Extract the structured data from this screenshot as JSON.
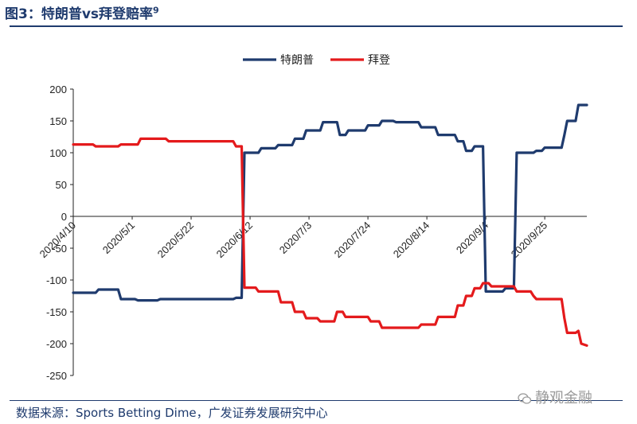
{
  "figure": {
    "title": "图3：特朗普vs拜登赔率",
    "title_superscript": "9",
    "source": "数据来源：Sports Betting Dime，广发证券发展研究中心",
    "watermark": "静观金融",
    "colors": {
      "frame": "#1f3b6e",
      "trump": "#1f3b6e",
      "biden": "#e41a1c"
    }
  },
  "chart_data": {
    "type": "line",
    "title": "",
    "xlabel": "",
    "ylabel": "",
    "ylim": [
      -250,
      200
    ],
    "yticks": [
      200,
      150,
      100,
      50,
      0,
      -50,
      -100,
      -150,
      -200,
      -250
    ],
    "xticks": [
      "2020/4/10",
      "2020/5/1",
      "2020/5/22",
      "2020/6/12",
      "2020/7/3",
      "2020/7/24",
      "2020/8/14",
      "2020/9/4",
      "2020/9/25"
    ],
    "xrange": [
      "2020/4/10",
      "2020/10/10"
    ],
    "legend_position": "top-center",
    "grid": false,
    "series": [
      {
        "name": "特朗普",
        "color": "#1f3b6e",
        "points": [
          [
            "2020/4/10",
            -120
          ],
          [
            "2020/4/18",
            -120
          ],
          [
            "2020/4/19",
            -115
          ],
          [
            "2020/4/26",
            -115
          ],
          [
            "2020/4/27",
            -130
          ],
          [
            "2020/5/2",
            -130
          ],
          [
            "2020/5/3",
            -132
          ],
          [
            "2020/5/10",
            -132
          ],
          [
            "2020/5/11",
            -130
          ],
          [
            "2020/6/6",
            -130
          ],
          [
            "2020/6/7",
            -128
          ],
          [
            "2020/6/9",
            -128
          ],
          [
            "2020/6/10",
            100
          ],
          [
            "2020/6/15",
            100
          ],
          [
            "2020/6/16",
            107
          ],
          [
            "2020/6/21",
            107
          ],
          [
            "2020/6/22",
            112
          ],
          [
            "2020/6/27",
            112
          ],
          [
            "2020/6/28",
            122
          ],
          [
            "2020/7/1",
            122
          ],
          [
            "2020/7/2",
            135
          ],
          [
            "2020/7/7",
            135
          ],
          [
            "2020/7/8",
            148
          ],
          [
            "2020/7/13",
            148
          ],
          [
            "2020/7/14",
            128
          ],
          [
            "2020/7/16",
            128
          ],
          [
            "2020/7/17",
            135
          ],
          [
            "2020/7/23",
            135
          ],
          [
            "2020/7/24",
            143
          ],
          [
            "2020/7/28",
            143
          ],
          [
            "2020/7/29",
            150
          ],
          [
            "2020/8/2",
            150
          ],
          [
            "2020/8/3",
            148
          ],
          [
            "2020/8/11",
            148
          ],
          [
            "2020/8/12",
            140
          ],
          [
            "2020/8/17",
            140
          ],
          [
            "2020/8/18",
            128
          ],
          [
            "2020/8/24",
            128
          ],
          [
            "2020/8/25",
            118
          ],
          [
            "2020/8/27",
            118
          ],
          [
            "2020/8/28",
            103
          ],
          [
            "2020/8/30",
            103
          ],
          [
            "2020/8/31",
            110
          ],
          [
            "2020/9/3",
            110
          ],
          [
            "2020/9/4",
            -118
          ],
          [
            "2020/9/10",
            -118
          ],
          [
            "2020/9/11",
            -113
          ],
          [
            "2020/9/14",
            -113
          ],
          [
            "2020/9/15",
            100
          ],
          [
            "2020/9/21",
            100
          ],
          [
            "2020/9/22",
            103
          ],
          [
            "2020/9/24",
            103
          ],
          [
            "2020/9/25",
            108
          ],
          [
            "2020/10/1",
            108
          ],
          [
            "2020/10/2",
            128
          ],
          [
            "2020/10/3",
            150
          ],
          [
            "2020/10/6",
            150
          ],
          [
            "2020/10/7",
            175
          ],
          [
            "2020/10/10",
            175
          ]
        ]
      },
      {
        "name": "拜登",
        "color": "#e41a1c",
        "points": [
          [
            "2020/4/10",
            113
          ],
          [
            "2020/4/17",
            113
          ],
          [
            "2020/4/18",
            110
          ],
          [
            "2020/4/26",
            110
          ],
          [
            "2020/4/27",
            113
          ],
          [
            "2020/5/3",
            113
          ],
          [
            "2020/5/4",
            122
          ],
          [
            "2020/5/13",
            122
          ],
          [
            "2020/5/14",
            118
          ],
          [
            "2020/6/6",
            118
          ],
          [
            "2020/6/7",
            110
          ],
          [
            "2020/6/9",
            110
          ],
          [
            "2020/6/10",
            -112
          ],
          [
            "2020/6/14",
            -112
          ],
          [
            "2020/6/15",
            -118
          ],
          [
            "2020/6/22",
            -118
          ],
          [
            "2020/6/23",
            -135
          ],
          [
            "2020/6/27",
            -135
          ],
          [
            "2020/6/28",
            -150
          ],
          [
            "2020/7/1",
            -150
          ],
          [
            "2020/7/2",
            -160
          ],
          [
            "2020/7/6",
            -160
          ],
          [
            "2020/7/7",
            -165
          ],
          [
            "2020/7/12",
            -165
          ],
          [
            "2020/7/13",
            -150
          ],
          [
            "2020/7/15",
            -150
          ],
          [
            "2020/7/16",
            -158
          ],
          [
            "2020/7/24",
            -158
          ],
          [
            "2020/7/25",
            -165
          ],
          [
            "2020/7/28",
            -165
          ],
          [
            "2020/7/29",
            -175
          ],
          [
            "2020/8/11",
            -175
          ],
          [
            "2020/8/12",
            -170
          ],
          [
            "2020/8/17",
            -170
          ],
          [
            "2020/8/18",
            -158
          ],
          [
            "2020/8/24",
            -158
          ],
          [
            "2020/8/25",
            -140
          ],
          [
            "2020/8/27",
            -140
          ],
          [
            "2020/8/28",
            -125
          ],
          [
            "2020/8/30",
            -125
          ],
          [
            "2020/8/31",
            -113
          ],
          [
            "2020/9/2",
            -113
          ],
          [
            "2020/9/3",
            -105
          ],
          [
            "2020/9/5",
            -105
          ],
          [
            "2020/9/6",
            -110
          ],
          [
            "2020/9/14",
            -110
          ],
          [
            "2020/9/15",
            -118
          ],
          [
            "2020/9/20",
            -118
          ],
          [
            "2020/9/21",
            -125
          ],
          [
            "2020/9/22",
            -130
          ],
          [
            "2020/10/1",
            -130
          ],
          [
            "2020/10/2",
            -160
          ],
          [
            "2020/10/3",
            -183
          ],
          [
            "2020/10/6",
            -183
          ],
          [
            "2020/10/7",
            -180
          ],
          [
            "2020/10/8",
            -200
          ],
          [
            "2020/10/10",
            -203
          ]
        ]
      }
    ]
  }
}
